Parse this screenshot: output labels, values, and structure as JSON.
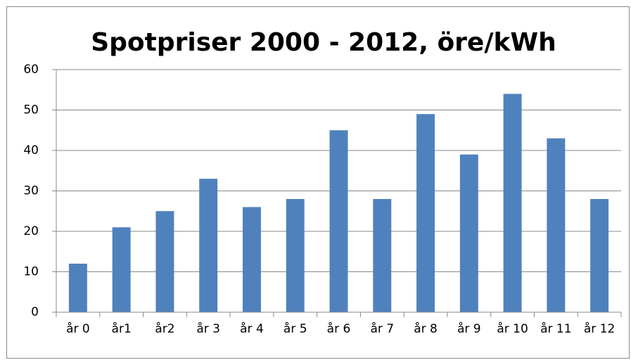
{
  "chart_data": {
    "type": "bar",
    "title": "Spotpriser 2000 - 2012, öre/kWh",
    "categories": [
      "år 0",
      "år1",
      "år2",
      "år 3",
      "år 4",
      "år 5",
      "år 6",
      "år 7",
      "år 8",
      "år 9",
      "år 10",
      "år 11",
      "år 12"
    ],
    "values": [
      12,
      21,
      25,
      33,
      26,
      28,
      45,
      28,
      49,
      39,
      54,
      43,
      28
    ],
    "color": "#4f81bd",
    "ylim": [
      0,
      60
    ],
    "yticks": [
      0,
      10,
      20,
      30,
      40,
      50,
      60
    ],
    "grid": true
  }
}
